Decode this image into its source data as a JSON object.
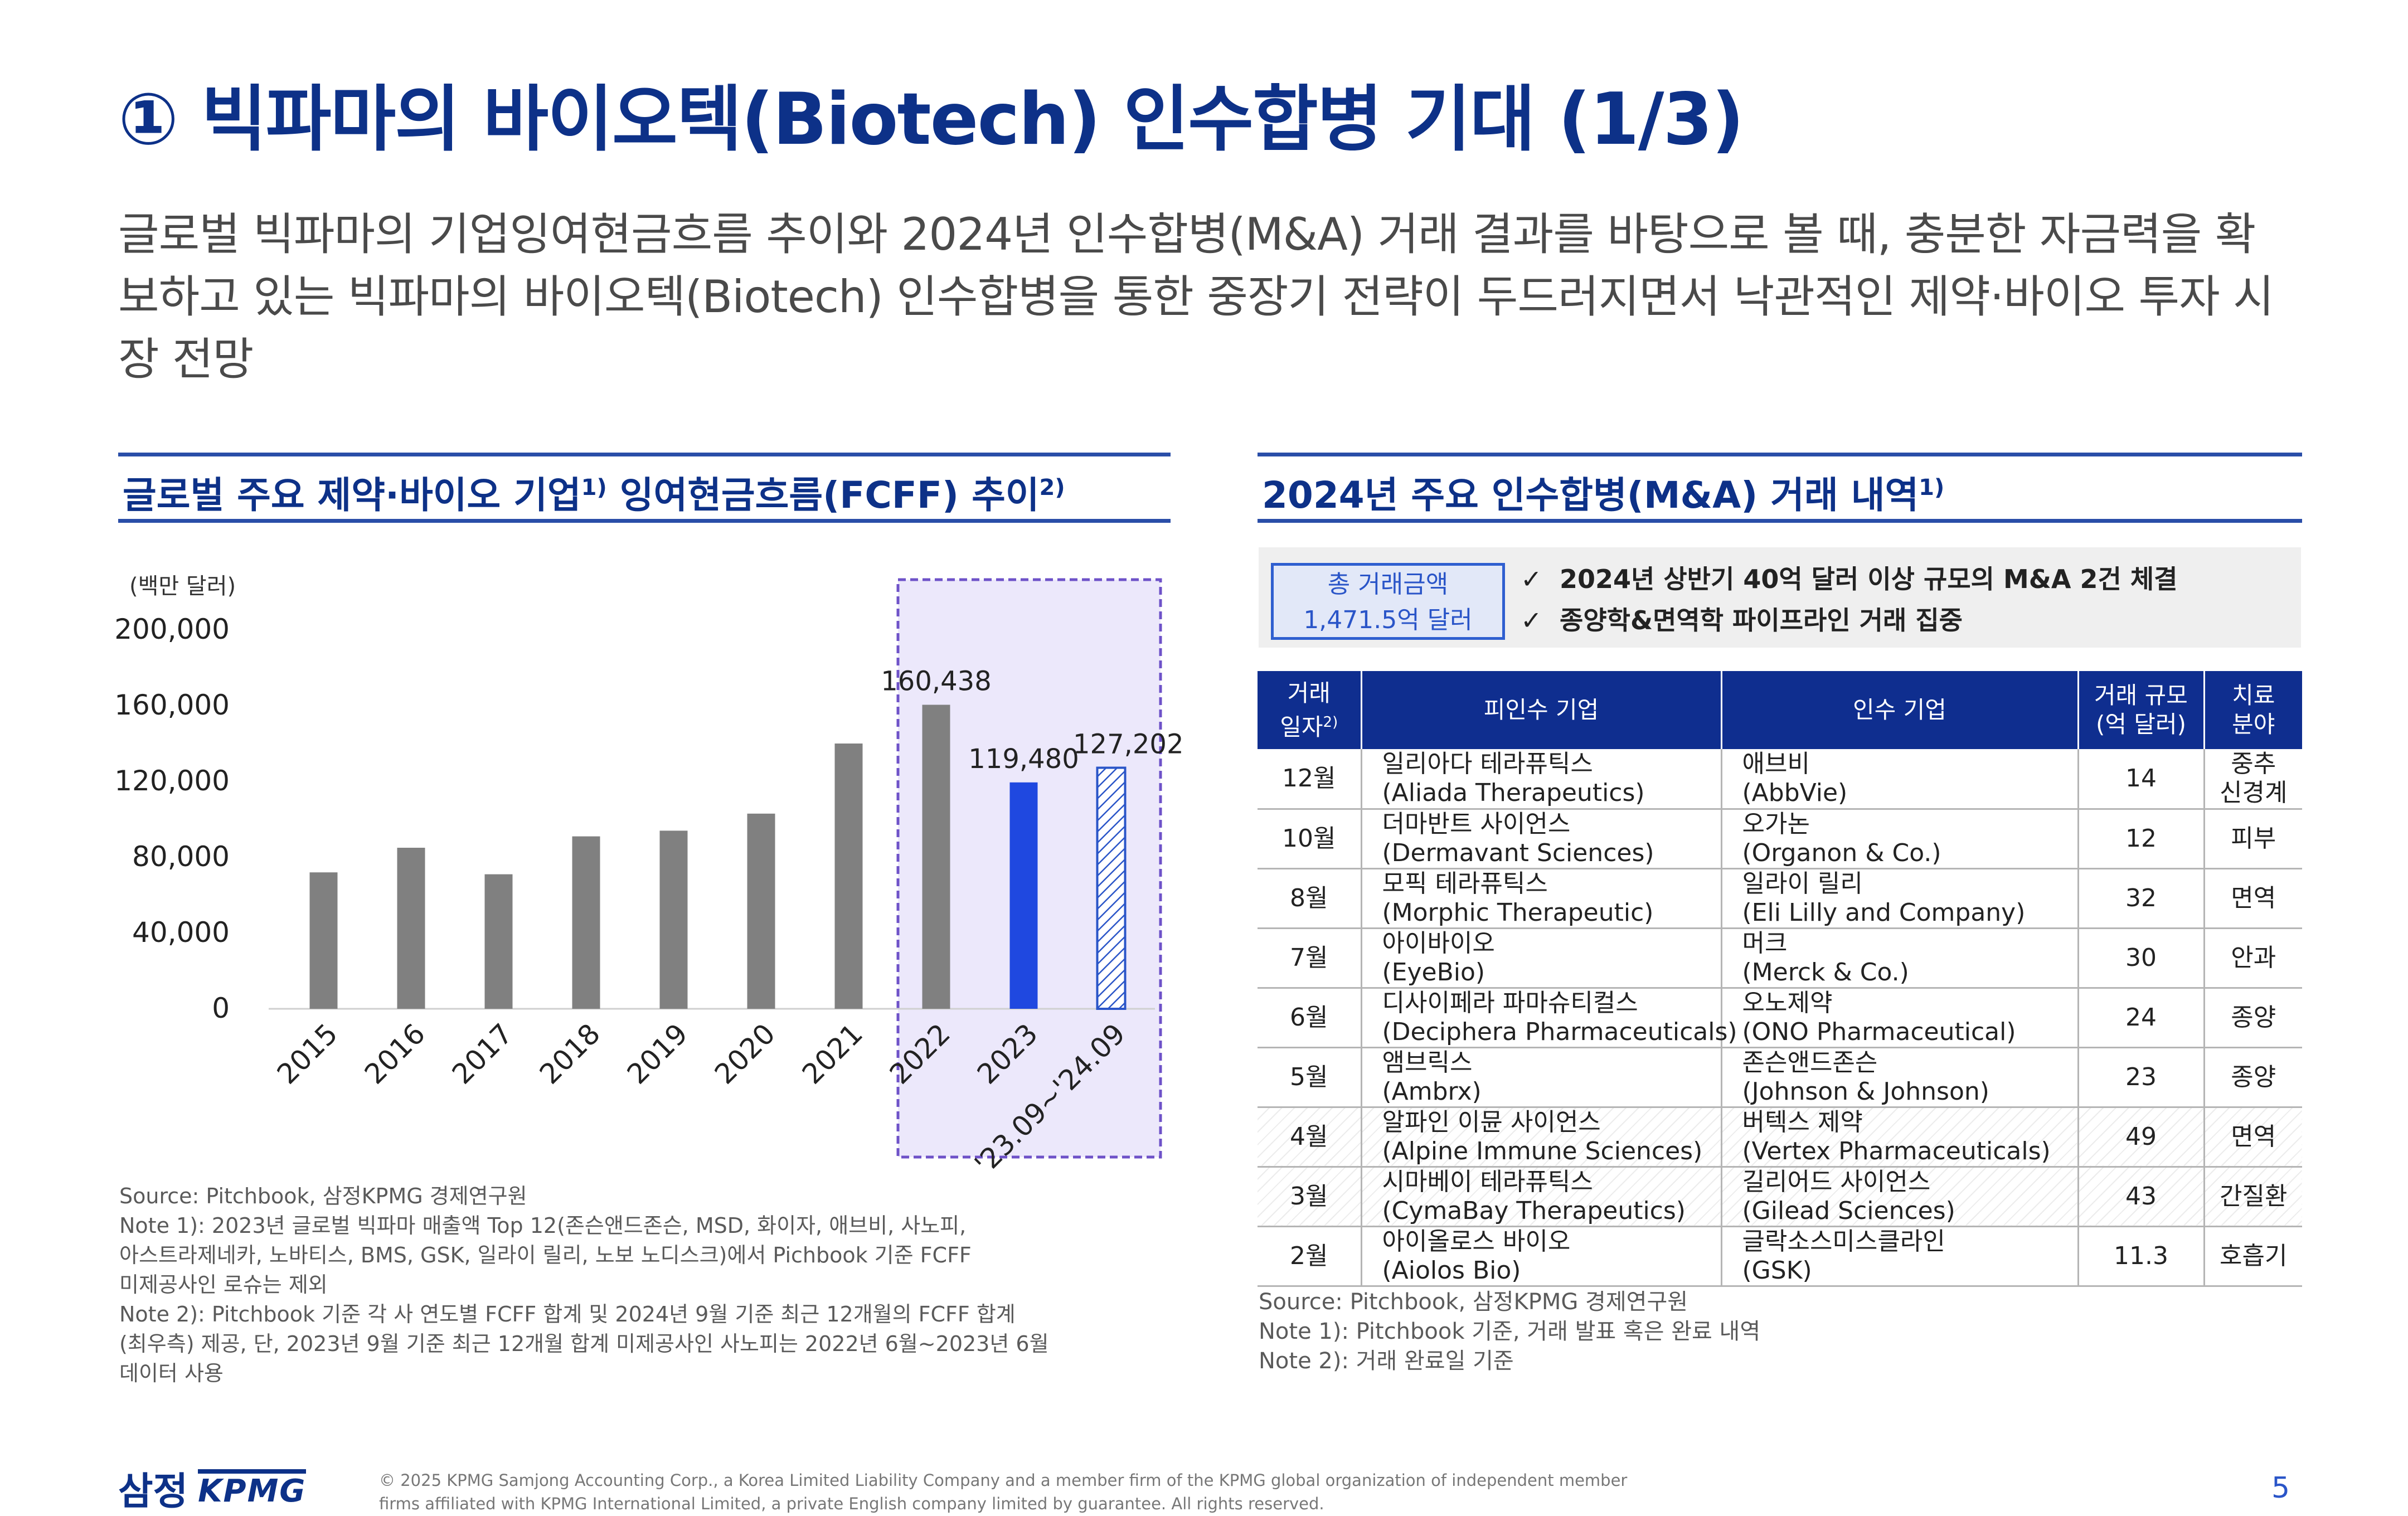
{
  "header": {
    "title": "① 빅파마의 바이오텍(Biotech) 인수합병 기대 (1/3)",
    "intro": "글로벌 빅파마의 기업잉여현금흐름 추이와 2024년 인수합병(M&A) 거래 결과를 바탕으로 볼 때, 충분한 자금력을 확보하고 있는 빅파마의 바이오텍(Biotech) 인수합병을 통한 중장기 전략이 두드러지면서 낙관적인 제약·바이오 투자 시장 전망"
  },
  "left_section": {
    "heading": "글로벌 주요 제약·바이오 기업",
    "heading_sup1": "1)",
    "heading_mid": " 잉여현금흐름(FCFF) 추이",
    "heading_sup2": "2)",
    "notes": [
      "Source: Pitchbook, 삼정KPMG 경제연구원",
      "Note 1): 2023년 글로벌 빅파마 매출액 Top 12(존슨앤드존슨, MSD, 화이자, 애브비, 사노피,",
      "아스트라제네카, 노바티스, BMS, GSK, 일라이 릴리, 노보 노디스크)에서 Pichbook 기준 FCFF",
      "미제공사인 로슈는 제외",
      "Note 2): Pitchbook 기준 각 사 연도별 FCFF 합계 및 2024년 9월 기준 최근 12개월의 FCFF 합계",
      "(최우측) 제공, 단, 2023년 9월 기준 최근 12개월 합계 미제공사인 사노피는 2022년 6월~2023년 6월",
      "데이터 사용"
    ]
  },
  "chart_data": {
    "type": "bar",
    "unit_label": "(백만 달러)",
    "categories": [
      "2015",
      "2016",
      "2017",
      "2018",
      "2019",
      "2020",
      "2021",
      "2022",
      "2023",
      "'23.09~'24.09"
    ],
    "values": [
      72000,
      85000,
      71000,
      91000,
      94000,
      103000,
      140000,
      160438,
      119480,
      127202
    ],
    "data_labels": [
      "",
      "",
      "",
      "",
      "",
      "",
      "",
      "160,438",
      "119,480",
      "127,202"
    ],
    "yticks": [
      "0",
      "40,000",
      "80,000",
      "120,000",
      "160,000",
      "200,000"
    ],
    "ylim": [
      0,
      200000
    ],
    "colors": {
      "default": "#808080",
      "highlight": "#1f48e0",
      "hatch": "#2a55c8",
      "highlight_box": "#ece8fb",
      "highlight_border": "#6e52c8"
    }
  },
  "right_section": {
    "heading": "2024년 주요 인수합병(M&A) 거래 내역",
    "heading_sup": "1)",
    "total_label": "총 거래금액",
    "total_value": "1,471.5억 달러",
    "check_mark": "✓",
    "points": [
      "2024년 상반기 40억 달러 이상 규모의 M&A 2건 체결",
      "종양학&면역학 파이프라인 거래 집중"
    ],
    "table": {
      "headers": {
        "date_1": "거래",
        "date_2": "일자",
        "date_sup": "2)",
        "target": "피인수 기업",
        "acquirer": "인수 기업",
        "size_1": "거래 규모",
        "size_2": "(억 달러)",
        "area_1": "치료",
        "area_2": "분야"
      },
      "rows": [
        {
          "date": "12월",
          "target_ko": "일리아다 테라퓨틱스",
          "target_en": "(Aliada Therapeutics)",
          "acq_ko": "애브비",
          "acq_en": "(AbbVie)",
          "size": "14",
          "area_1": "중추",
          "area_2": "신경계",
          "highlight": false
        },
        {
          "date": "10월",
          "target_ko": "더마반트 사이언스",
          "target_en": "(Dermavant Sciences)",
          "acq_ko": "오가논",
          "acq_en": "(Organon & Co.)",
          "size": "12",
          "area_1": "피부",
          "area_2": "",
          "highlight": false
        },
        {
          "date": "8월",
          "target_ko": "모픽 테라퓨틱스",
          "target_en": "(Morphic Therapeutic)",
          "acq_ko": "일라이 릴리",
          "acq_en": "(Eli Lilly and Company)",
          "size": "32",
          "area_1": "면역",
          "area_2": "",
          "highlight": false
        },
        {
          "date": "7월",
          "target_ko": "아이바이오",
          "target_en": "(EyeBio)",
          "acq_ko": "머크",
          "acq_en": "(Merck & Co.)",
          "size": "30",
          "area_1": "안과",
          "area_2": "",
          "highlight": false
        },
        {
          "date": "6월",
          "target_ko": "디사이페라 파마슈티컬스",
          "target_en": "(Deciphera Pharmaceuticals)",
          "acq_ko": "오노제약",
          "acq_en": "(ONO Pharmaceutical)",
          "size": "24",
          "area_1": "종양",
          "area_2": "",
          "highlight": false
        },
        {
          "date": "5월",
          "target_ko": "앰브릭스",
          "target_en": "(Ambrx)",
          "acq_ko": "존슨앤드존슨",
          "acq_en": "(Johnson & Johnson)",
          "size": "23",
          "area_1": "종양",
          "area_2": "",
          "highlight": false
        },
        {
          "date": "4월",
          "target_ko": "알파인 이뮨 사이언스",
          "target_en": "(Alpine Immune Sciences)",
          "acq_ko": "버텍스 제약",
          "acq_en": "(Vertex Pharmaceuticals)",
          "size": "49",
          "area_1": "면역",
          "area_2": "",
          "highlight": true
        },
        {
          "date": "3월",
          "target_ko": "시마베이 테라퓨틱스",
          "target_en": "(CymaBay Therapeutics)",
          "acq_ko": "길리어드 사이언스",
          "acq_en": "(Gilead Sciences)",
          "size": "43",
          "area_1": "간질환",
          "area_2": "",
          "highlight": true
        },
        {
          "date": "2월",
          "target_ko": "아이올로스 바이오",
          "target_en": "(Aiolos Bio)",
          "acq_ko": "글락소스미스클라인",
          "acq_en": "(GSK)",
          "size": "11.3",
          "area_1": "호흡기",
          "area_2": "",
          "highlight": false
        }
      ]
    },
    "notes": [
      "Source: Pitchbook, 삼정KPMG 경제연구원",
      "Note 1): Pitchbook 기준, 거래 발표 혹은 완료 내역",
      "Note 2): 거래 완료일 기준"
    ]
  },
  "footer": {
    "logo_ko": "삼정",
    "logo_en": "KPMG",
    "copyright": "© 2025 KPMG Samjong Accounting Corp., a Korea Limited Liability Company and a member firm of the KPMG global organization of independent member firms affiliated with KPMG International Limited, a private English company limited by guarantee. All rights reserved.",
    "page_number": "5"
  }
}
